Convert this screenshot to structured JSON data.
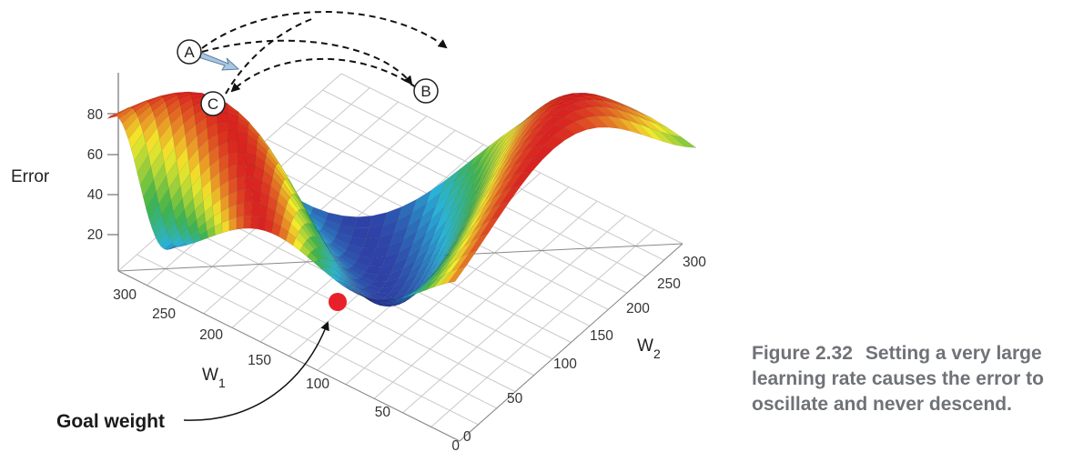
{
  "figure": {
    "axes": {
      "z_title": "Error",
      "z_ticks": [
        "20",
        "40",
        "60",
        "80"
      ],
      "w1_title": "W",
      "w1_sub": "1",
      "w1_ticks": [
        "0",
        "50",
        "100",
        "150",
        "200",
        "250",
        "300"
      ],
      "w2_title": "W",
      "w2_sub": "2",
      "w2_ticks": [
        "0",
        "50",
        "100",
        "150",
        "200",
        "250",
        "300"
      ]
    },
    "markers": [
      {
        "label": "A"
      },
      {
        "label": "B"
      },
      {
        "label": "C"
      }
    ],
    "goal": {
      "label": "Goal weight"
    },
    "colors": {
      "surface_low": "#2e3fa6",
      "surface_mid_low": "#29b4d8",
      "surface_mid": "#3fb34a",
      "surface_mid_high": "#f4ea2a",
      "surface_high": "#d92020",
      "goal_dot": "#e8202a",
      "step_arrow": "#a9c6e3"
    }
  },
  "caption": {
    "number": "Figure 2.32",
    "text": "Setting a very large learning rate causes the error to oscillate and never descend."
  }
}
